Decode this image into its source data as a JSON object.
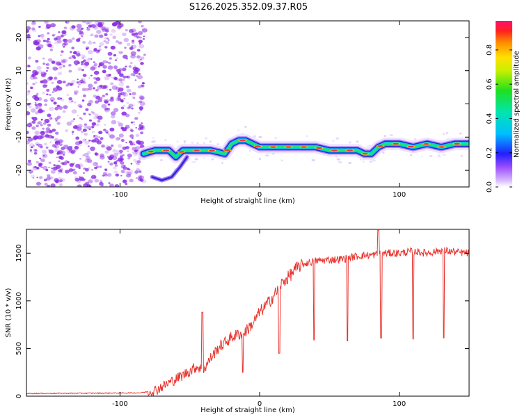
{
  "title": "S126.2025.352.09.37.R05",
  "colors": {
    "snr_line": "#e8342e",
    "speckle": "#8a2be2",
    "ridge_core": "#e53935",
    "frame": "#000000"
  },
  "chart_data": [
    {
      "name": "spectrogram",
      "type": "heatmap",
      "xlabel": "Height of straight line (km)",
      "ylabel": "Frequency (Hz)",
      "xlim": [
        -167,
        150
      ],
      "ylim": [
        -25,
        25
      ],
      "xticks": [
        -100,
        0,
        100
      ],
      "xtick_labels": [
        "-100",
        "0",
        "100"
      ],
      "yticks": [
        -20,
        -10,
        0,
        10,
        20
      ],
      "ytick_labels": [
        "-20",
        "-10",
        "0",
        "10",
        "20"
      ],
      "noise_region_x": [
        -167,
        -82
      ],
      "ridge": {
        "x": [
          -83,
          -75,
          -65,
          -60,
          -55,
          -45,
          -35,
          -25,
          -20,
          -15,
          -10,
          -5,
          0,
          10,
          20,
          30,
          40,
          50,
          60,
          70,
          75,
          80,
          85,
          90,
          95,
          100,
          110,
          120,
          130,
          140,
          150
        ],
        "y": [
          -15,
          -14,
          -14,
          -16,
          -14,
          -14,
          -14,
          -15,
          -12,
          -11,
          -11,
          -12,
          -13,
          -13,
          -13,
          -13,
          -13,
          -14,
          -14,
          -14,
          -15,
          -15,
          -13,
          -12,
          -12,
          -12,
          -13,
          -12,
          -13,
          -12,
          -12
        ]
      },
      "branch": {
        "x": [
          -77,
          -70,
          -63,
          -57,
          -52
        ],
        "y": [
          -22,
          -23,
          -22,
          -19,
          -16
        ]
      },
      "colorbar": {
        "label": "Normalized spectral amplitude",
        "range": [
          0.0,
          0.97
        ],
        "ticks": [
          0.0,
          0.2,
          0.4,
          0.6,
          0.8
        ],
        "tick_labels": [
          "0.0",
          "0.2",
          "0.4",
          "0.6",
          "0.8"
        ]
      }
    },
    {
      "name": "snr",
      "type": "line",
      "xlabel": "Height of straight line (km)",
      "ylabel": "SNR (10 * v/v)",
      "xlim": [
        -167,
        150
      ],
      "ylim": [
        0,
        1750
      ],
      "xticks": [
        -100,
        0,
        100
      ],
      "xtick_labels": [
        "-100",
        "0",
        "100"
      ],
      "yticks": [
        0,
        500,
        1000,
        1500
      ],
      "ytick_labels": [
        "0",
        "500",
        "1000",
        "1500"
      ],
      "series": [
        {
          "name": "SNR",
          "x": [
            -167,
            -140,
            -110,
            -85,
            -75,
            -65,
            -55,
            -45,
            -40,
            -35,
            -30,
            -20,
            -10,
            -5,
            0,
            5,
            10,
            15,
            20,
            25,
            30,
            40,
            50,
            60,
            70,
            80,
            85,
            90,
            100,
            110,
            120,
            130,
            140,
            150
          ],
          "y": [
            28,
            30,
            32,
            35,
            60,
            140,
            220,
            310,
            280,
            400,
            500,
            620,
            680,
            760,
            880,
            960,
            1050,
            1170,
            1240,
            1320,
            1380,
            1420,
            1430,
            1440,
            1470,
            1480,
            1490,
            1500,
            1500,
            1520,
            1500,
            1530,
            1510,
            1500
          ]
        }
      ],
      "spikes": [
        {
          "x": -41,
          "y": 880
        },
        {
          "x": 85,
          "y": 1740
        }
      ],
      "dips": [
        {
          "x": -12,
          "y": 250
        },
        {
          "x": 14,
          "y": 450
        },
        {
          "x": 39,
          "y": 590
        },
        {
          "x": 63,
          "y": 580
        },
        {
          "x": 87,
          "y": 610
        },
        {
          "x": 110,
          "y": 600
        },
        {
          "x": 132,
          "y": 610
        }
      ]
    }
  ]
}
